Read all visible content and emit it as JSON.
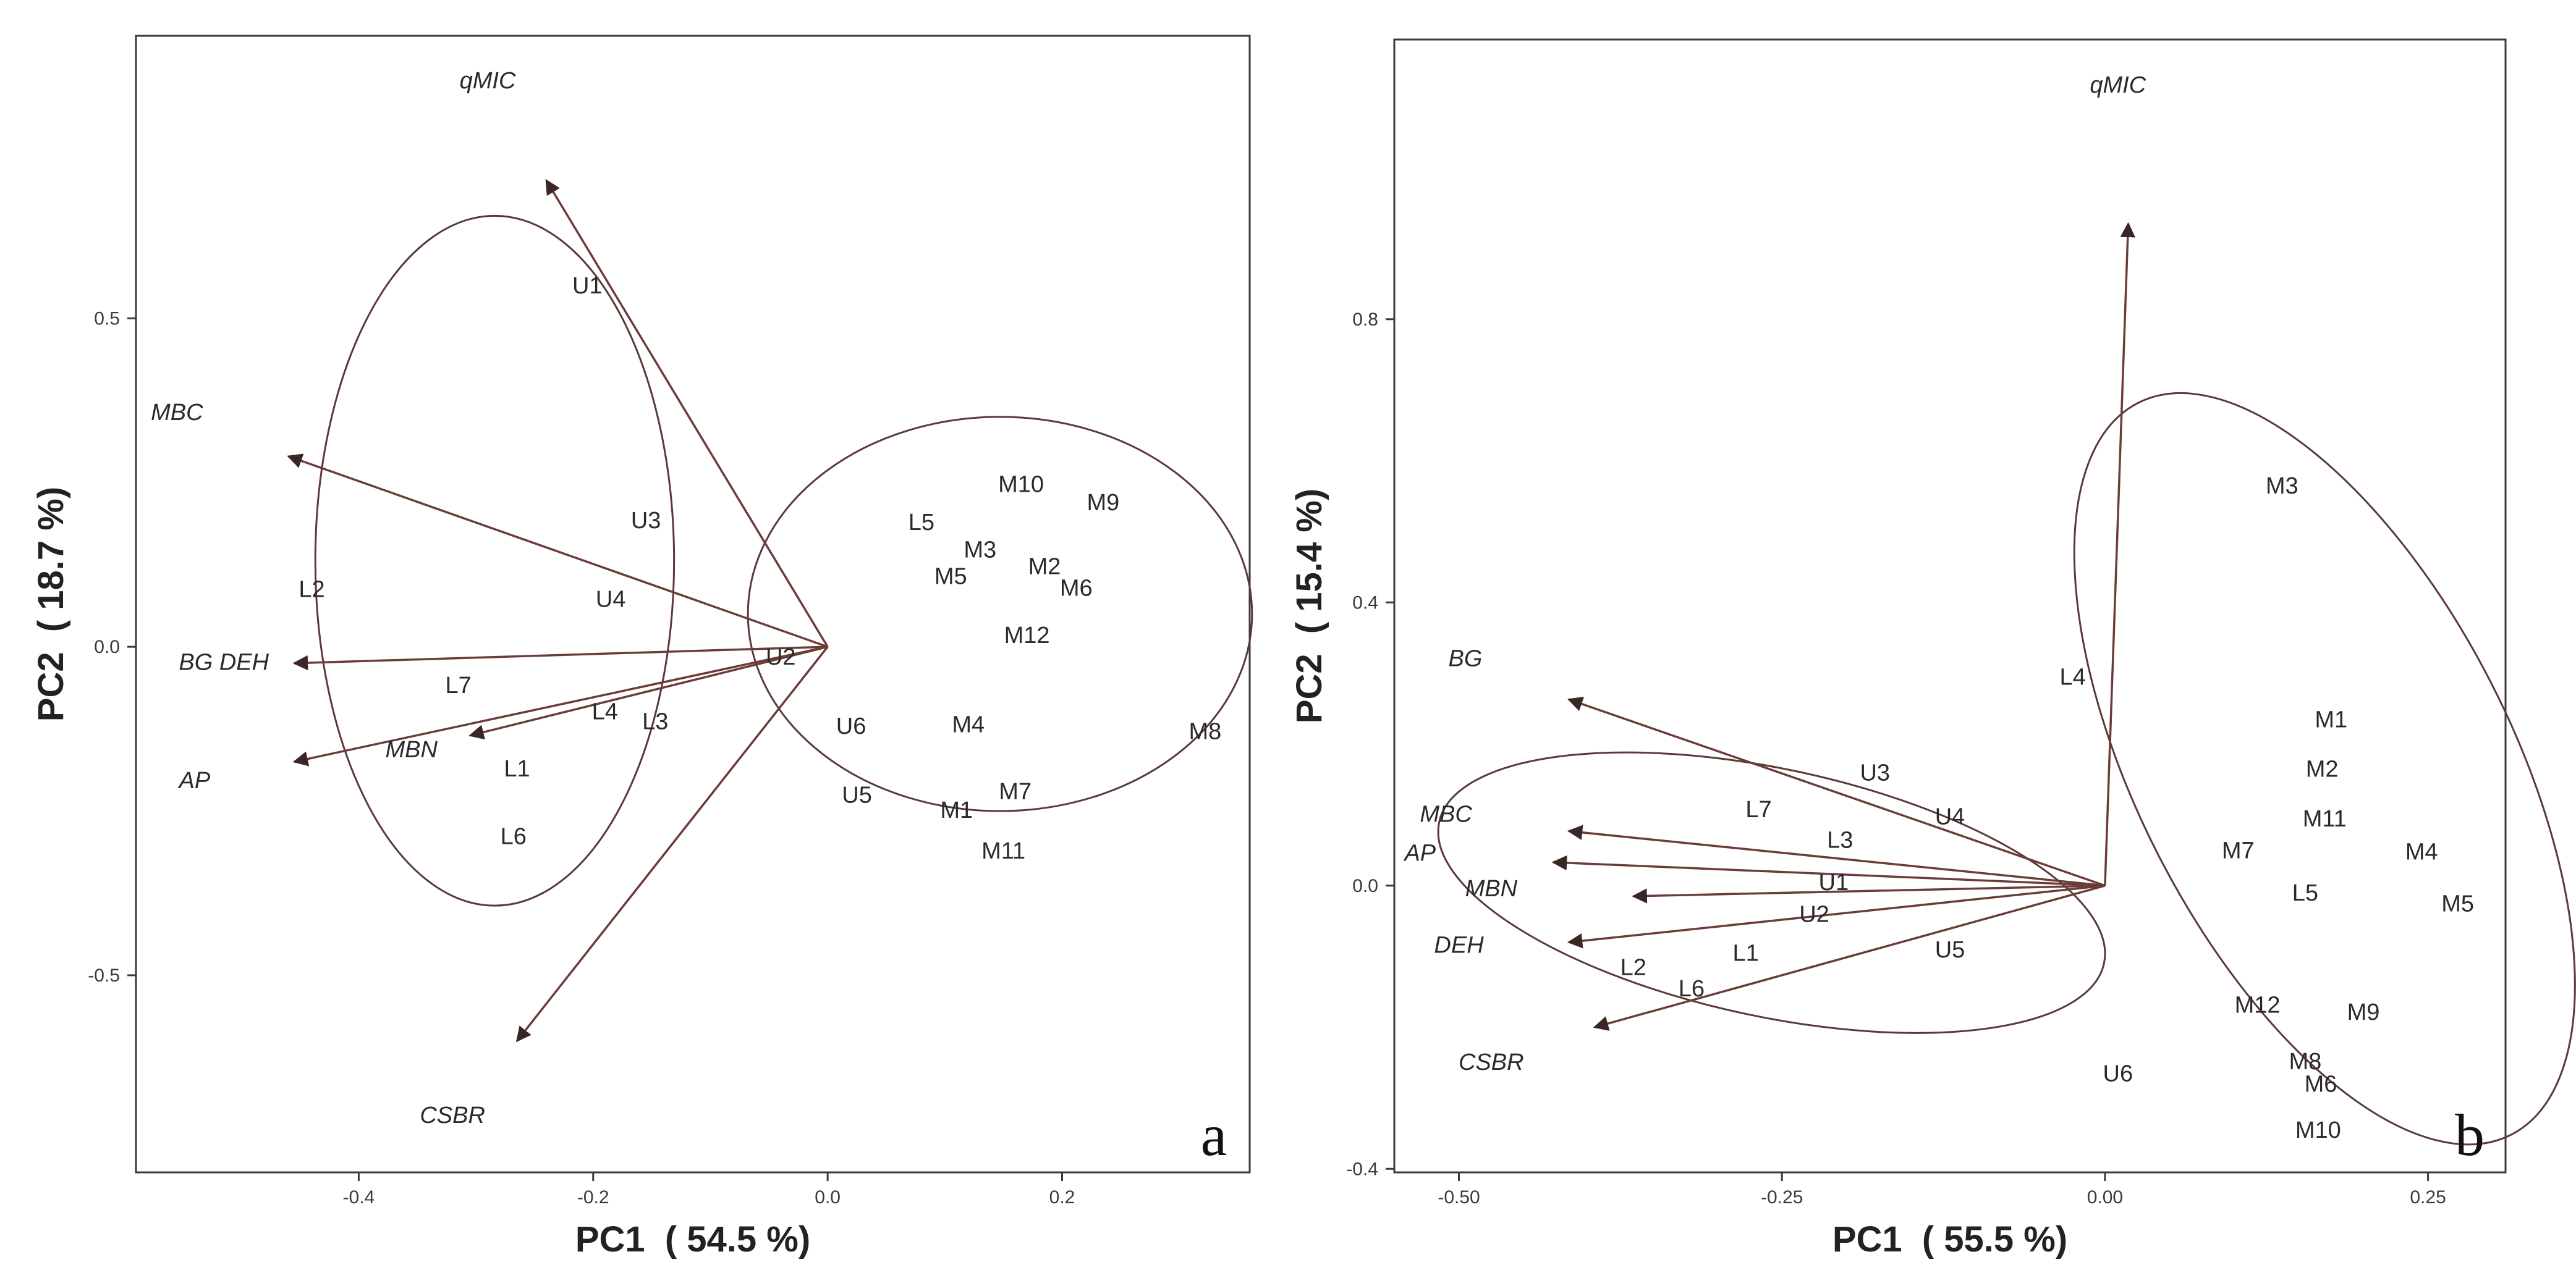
{
  "chart_data": [
    {
      "type": "scatter",
      "panel_label": "a",
      "xlabel": "PC1  ( 54.5 %)",
      "ylabel": "PC2  ( 18.7 %)",
      "xlim": [
        -0.59,
        0.36
      ],
      "ylim": [
        -0.8,
        0.93
      ],
      "xticks": [
        -0.4,
        -0.2,
        0.0,
        0.2
      ],
      "xtick_labels": [
        "-0.4",
        "-0.2",
        "0.0",
        "0.2"
      ],
      "yticks": [
        -0.5,
        0.0,
        0.5
      ],
      "ytick_labels": [
        "-0.5",
        "0.0",
        "0.5"
      ],
      "grid": false,
      "points": [
        {
          "label": "U1",
          "x": -0.205,
          "y": 0.55
        },
        {
          "label": "U3",
          "x": -0.155,
          "y": 0.193
        },
        {
          "label": "U4",
          "x": -0.185,
          "y": 0.073
        },
        {
          "label": "U2",
          "x": -0.04,
          "y": -0.015
        },
        {
          "label": "U6",
          "x": 0.02,
          "y": -0.12
        },
        {
          "label": "U5",
          "x": 0.025,
          "y": -0.225
        },
        {
          "label": "L2",
          "x": -0.44,
          "y": 0.088
        },
        {
          "label": "L7",
          "x": -0.315,
          "y": -0.058
        },
        {
          "label": "L4",
          "x": -0.19,
          "y": -0.098
        },
        {
          "label": "L3",
          "x": -0.147,
          "y": -0.113
        },
        {
          "label": "L1",
          "x": -0.265,
          "y": -0.185
        },
        {
          "label": "L6",
          "x": -0.268,
          "y": -0.288
        },
        {
          "label": "L5",
          "x": 0.08,
          "y": 0.19
        },
        {
          "label": "M10",
          "x": 0.165,
          "y": 0.248
        },
        {
          "label": "M9",
          "x": 0.235,
          "y": 0.22
        },
        {
          "label": "M3",
          "x": 0.13,
          "y": 0.148
        },
        {
          "label": "M5",
          "x": 0.105,
          "y": 0.108
        },
        {
          "label": "M2",
          "x": 0.185,
          "y": 0.123
        },
        {
          "label": "M6",
          "x": 0.212,
          "y": 0.09
        },
        {
          "label": "M12",
          "x": 0.17,
          "y": 0.018
        },
        {
          "label": "M4",
          "x": 0.12,
          "y": -0.118
        },
        {
          "label": "M8",
          "x": 0.322,
          "y": -0.128
        },
        {
          "label": "M7",
          "x": 0.16,
          "y": -0.22
        },
        {
          "label": "M1",
          "x": 0.11,
          "y": -0.248
        },
        {
          "label": "M11",
          "x": 0.15,
          "y": -0.31
        }
      ],
      "loadings": [
        {
          "name": "qMIC",
          "x": -0.24,
          "y": 0.71,
          "label_x": -0.29,
          "label_y": 0.85
        },
        {
          "name": "MBC",
          "x": -0.46,
          "y": 0.29,
          "label_x": -0.555,
          "label_y": 0.345
        },
        {
          "name": "BG DEH",
          "x": -0.455,
          "y": -0.025,
          "label_x": -0.515,
          "label_y": -0.035
        },
        {
          "name": "AP",
          "x": -0.455,
          "y": -0.175,
          "label_x": -0.54,
          "label_y": -0.215
        },
        {
          "name": "MBN",
          "x": -0.305,
          "y": -0.135,
          "label_x": -0.355,
          "label_y": -0.168
        },
        {
          "name": "CSBR",
          "x": -0.265,
          "y": -0.6,
          "label_x": -0.32,
          "label_y": -0.725
        }
      ],
      "ellipses": [
        {
          "cx": -0.284,
          "cy": 0.131,
          "rx": 0.153,
          "ry": 0.525
        },
        {
          "cx": 0.147,
          "cy": 0.05,
          "rx": 0.215,
          "ry": 0.3
        }
      ]
    },
    {
      "type": "scatter",
      "panel_label": "b",
      "xlabel": "PC1  ( 55.5 %)",
      "ylabel": "PC2  ( 15.4 %)",
      "xlim": [
        -0.55,
        0.31
      ],
      "ylim": [
        -0.405,
        1.195
      ],
      "xticks": [
        -0.5,
        -0.25,
        0.0,
        0.25
      ],
      "xtick_labels": [
        "-0.50",
        "-0.25",
        "0.00",
        "0.25"
      ],
      "yticks": [
        -0.4,
        0.0,
        0.4,
        0.8
      ],
      "ytick_labels": [
        "-0.4",
        "0.0",
        "0.4",
        "0.8"
      ],
      "grid": false,
      "points": [
        {
          "label": "M3",
          "x": 0.137,
          "y": 0.565
        },
        {
          "label": "L4",
          "x": -0.025,
          "y": 0.295
        },
        {
          "label": "M1",
          "x": 0.175,
          "y": 0.235
        },
        {
          "label": "M2",
          "x": 0.168,
          "y": 0.165
        },
        {
          "label": "M11",
          "x": 0.17,
          "y": 0.095
        },
        {
          "label": "M7",
          "x": 0.103,
          "y": 0.05
        },
        {
          "label": "M4",
          "x": 0.245,
          "y": 0.048
        },
        {
          "label": "L5",
          "x": 0.155,
          "y": -0.01
        },
        {
          "label": "M5",
          "x": 0.273,
          "y": -0.025
        },
        {
          "label": "U3",
          "x": -0.178,
          "y": 0.16
        },
        {
          "label": "U4",
          "x": -0.12,
          "y": 0.098
        },
        {
          "label": "L7",
          "x": -0.268,
          "y": 0.108
        },
        {
          "label": "L3",
          "x": -0.205,
          "y": 0.065
        },
        {
          "label": "U1",
          "x": -0.21,
          "y": 0.005
        },
        {
          "label": "U2",
          "x": -0.225,
          "y": -0.04
        },
        {
          "label": "U5",
          "x": -0.12,
          "y": -0.09
        },
        {
          "label": "L1",
          "x": -0.278,
          "y": -0.095
        },
        {
          "label": "L2",
          "x": -0.365,
          "y": -0.115
        },
        {
          "label": "L6",
          "x": -0.32,
          "y": -0.145
        },
        {
          "label": "M12",
          "x": 0.118,
          "y": -0.168
        },
        {
          "label": "M9",
          "x": 0.2,
          "y": -0.178
        },
        {
          "label": "M8",
          "x": 0.155,
          "y": -0.248
        },
        {
          "label": "M6",
          "x": 0.167,
          "y": -0.28
        },
        {
          "label": "U6",
          "x": 0.01,
          "y": -0.265
        },
        {
          "label": "M10",
          "x": 0.165,
          "y": -0.345
        }
      ],
      "loadings": [
        {
          "name": "qMIC",
          "x": 0.018,
          "y": 0.935,
          "label_x": 0.01,
          "label_y": 1.12
        },
        {
          "name": "BG",
          "x": -0.415,
          "y": 0.263,
          "label_x": -0.495,
          "label_y": 0.31
        },
        {
          "name": "MBC",
          "x": -0.415,
          "y": 0.077,
          "label_x": -0.51,
          "label_y": 0.09
        },
        {
          "name": "AP",
          "x": -0.427,
          "y": 0.033,
          "label_x": -0.53,
          "label_y": 0.035
        },
        {
          "name": "MBN",
          "x": -0.365,
          "y": -0.015,
          "label_x": -0.475,
          "label_y": -0.015
        },
        {
          "name": "DEH",
          "x": -0.415,
          "y": -0.08,
          "label_x": -0.5,
          "label_y": -0.095
        },
        {
          "name": "CSBR",
          "x": -0.395,
          "y": -0.2,
          "label_x": -0.475,
          "label_y": -0.26
        }
      ],
      "ellipses": [
        {
          "cx": -0.258,
          "cy": -0.01,
          "rx": 0.263,
          "ry": 0.175,
          "angle_deg": 12
        },
        {
          "cx": 0.17,
          "cy": 0.165,
          "rx": 0.145,
          "ry": 0.58,
          "angle_deg": -27
        }
      ]
    }
  ]
}
